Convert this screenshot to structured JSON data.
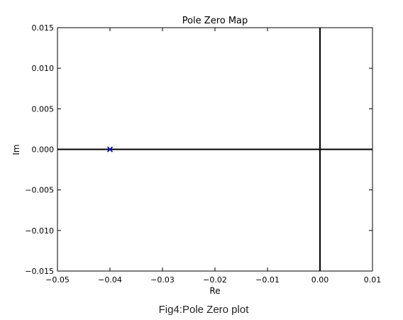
{
  "caption": "Fig4:Pole Zero plot",
  "chart_data": {
    "type": "scatter",
    "title": "Pole Zero Map",
    "xlabel": "Re",
    "ylabel": "Im",
    "xlim": [
      -0.05,
      0.01
    ],
    "ylim": [
      -0.015,
      0.015
    ],
    "xticks": [
      -0.05,
      -0.04,
      -0.03,
      -0.02,
      -0.01,
      0.0,
      0.01
    ],
    "xtick_labels": [
      "−0.05",
      "−0.04",
      "−0.03",
      "−0.02",
      "−0.01",
      "0.00",
      "0.01"
    ],
    "yticks": [
      0.015,
      0.01,
      0.005,
      0.0,
      -0.005,
      -0.01,
      -0.015
    ],
    "ytick_labels": [
      "0.015",
      "0.010",
      "0.005",
      "0.000",
      "−0.005",
      "−0.010",
      "−0.015"
    ],
    "reference_lines": {
      "x": 0,
      "y": 0
    },
    "grid": false,
    "series": [
      {
        "marker": "x",
        "color": "#0000bf",
        "points": [
          {
            "re": -0.04,
            "im": 0.0
          }
        ]
      }
    ]
  }
}
